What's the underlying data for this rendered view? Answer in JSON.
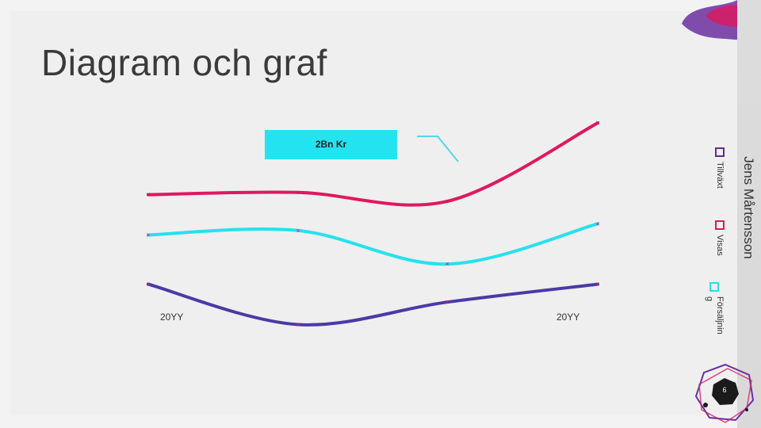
{
  "slide": {
    "title": "Diagram och graf",
    "author": "Jens Mårtensson",
    "page_number": "6",
    "callout": "2Bn Kr"
  },
  "colors": {
    "Tillväxt": "#e0185f",
    "Visas": "#26e1ee",
    "Försäljning": "#4a3aa6",
    "accent_pink": "#d81b60",
    "accent_purple": "#5b2d90"
  },
  "chart_data": {
    "type": "line",
    "smooth": true,
    "x_tick_labels": [
      "20YY",
      "20YY"
    ],
    "series": [
      {
        "name": "Tillväxt",
        "values": [
          3.6,
          3.65,
          3.45,
          5.2
        ]
      },
      {
        "name": "Visas",
        "values": [
          2.7,
          2.8,
          2.05,
          2.95
        ]
      },
      {
        "name": "Försäljning",
        "values": [
          1.6,
          0.7,
          1.2,
          1.6
        ]
      }
    ],
    "legend": [
      "Tillväxt",
      "Visas",
      "Försäljning"
    ],
    "legend_lines": [
      [
        "Tillväxt"
      ],
      [
        "Visas"
      ],
      [
        "Försäljnin",
        "g"
      ]
    ],
    "legend_position": "right, rotated",
    "ylim": [
      0,
      6
    ],
    "grid": false
  }
}
